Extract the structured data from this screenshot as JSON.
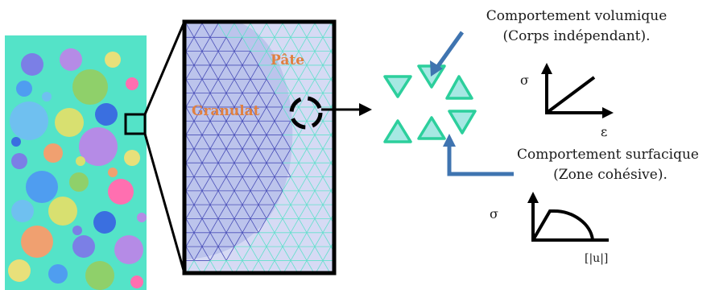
{
  "labels": {
    "pate": "Pâte",
    "granulat": "Granulat",
    "vol_line1": "Comportement volumique",
    "vol_line2": "(Corps indépendant).",
    "surf_line1": "Comportement surfacique",
    "surf_line2": "(Zone cohésive).",
    "sigma_top": "σ",
    "epsilon": "ε",
    "sigma_bottom": "σ",
    "displacement": "[|u|]"
  },
  "colors": {
    "specimen_bg": "#54e3c8",
    "mesh_bg": "#d6daf4",
    "granulat_fill": "#bcc4ec",
    "granulat_mesh": "#4a4fb8",
    "paste_mesh": "#62e0cc",
    "label_orange": "#e08040",
    "triangle_fill": "#a6e8e3",
    "triangle_stroke": "#2ccf9c",
    "pointer_blue": "#3f74b0"
  },
  "icons": [
    "expand-lines",
    "interface-circle-dashed",
    "arrow-right",
    "arrow-down-blue",
    "elbow-arrow-blue",
    "linear-law-graph",
    "cohesive-law-graph"
  ]
}
